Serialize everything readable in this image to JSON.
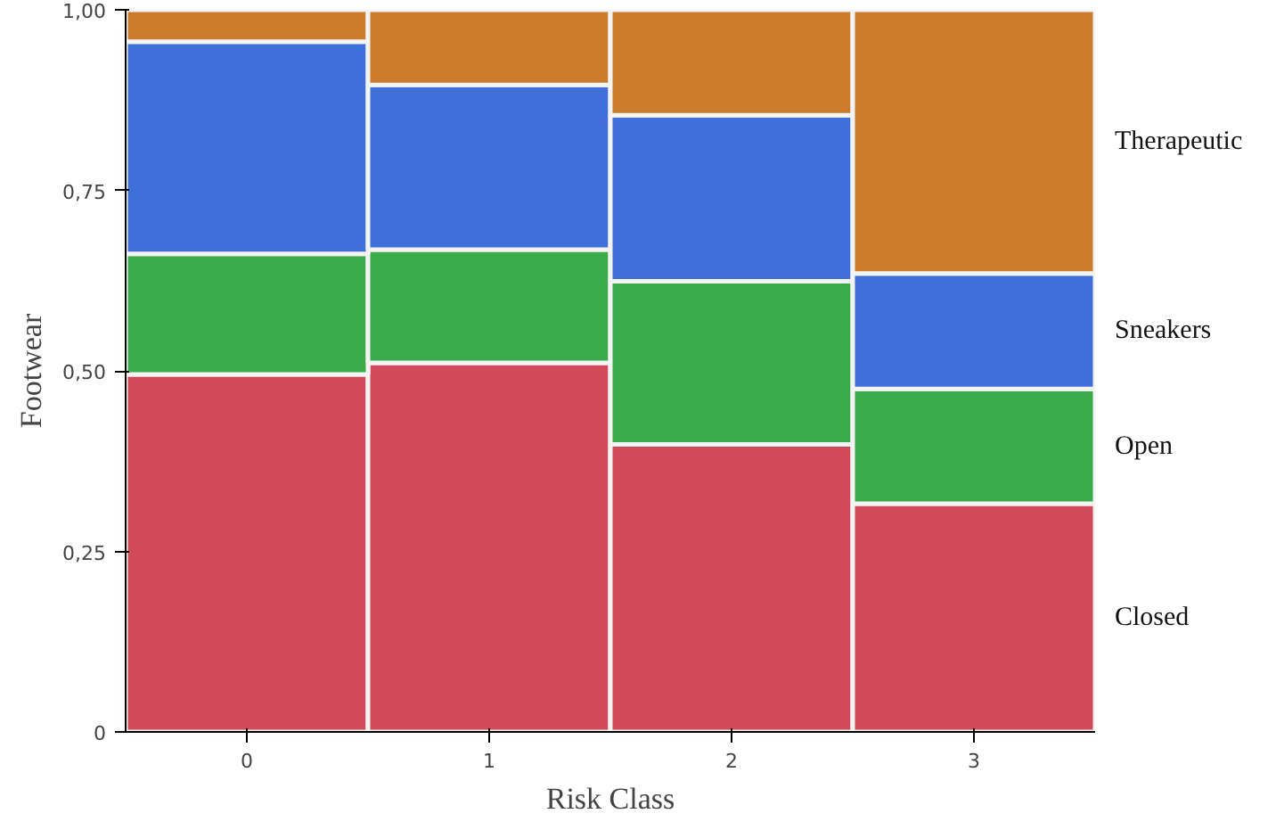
{
  "chart_data": {
    "type": "bar",
    "stacked": true,
    "xlabel": "Risk Class",
    "ylabel": "Footwear",
    "categories": [
      "0",
      "1",
      "2",
      "3"
    ],
    "ylim": [
      0,
      1
    ],
    "yticks": [
      {
        "value": 0,
        "label": "0"
      },
      {
        "value": 0.25,
        "label": "0,25"
      },
      {
        "value": 0.5,
        "label": "0,50"
      },
      {
        "value": 0.75,
        "label": "0,75"
      },
      {
        "value": 1,
        "label": "1,00"
      }
    ],
    "series": [
      {
        "name": "Closed",
        "color": "#d04a5a",
        "values": [
          0.495,
          0.511,
          0.398,
          0.316
        ]
      },
      {
        "name": "Open",
        "color": "#3aab48",
        "values": [
          0.167,
          0.157,
          0.226,
          0.159
        ]
      },
      {
        "name": "Sneakers",
        "color": "#3f6fd8",
        "values": [
          0.294,
          0.228,
          0.23,
          0.16
        ]
      },
      {
        "name": "Therapeutic",
        "color": "#cc7a2b",
        "values": [
          0.044,
          0.104,
          0.146,
          0.365
        ]
      }
    ]
  }
}
